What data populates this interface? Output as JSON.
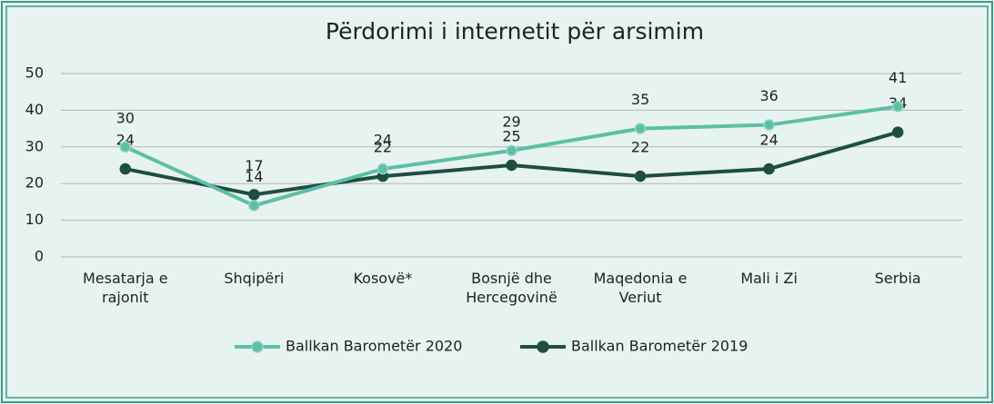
{
  "chart_data": {
    "type": "line",
    "title": "Përdorimi i internetit për arsimim",
    "categories": [
      "Mesatarja e rajonit",
      "Shqipëri",
      "Kosovë*",
      "Bosnjë dhe Hercegovinë",
      "Maqedonia e Veriut",
      "Mali i Zi",
      "Serbia"
    ],
    "series": [
      {
        "name": "Ballkan Barometër 2020",
        "color": "#5cbfa7",
        "values": [
          30,
          14,
          24,
          29,
          35,
          36,
          41
        ]
      },
      {
        "name": "Ballkan Barometër 2019",
        "color": "#1e4d43",
        "values": [
          24,
          17,
          22,
          25,
          22,
          24,
          34
        ]
      }
    ],
    "ylim": [
      0,
      50
    ],
    "yticks": [
      0,
      10,
      20,
      30,
      40,
      50
    ],
    "grid": true,
    "legend": "bottom"
  }
}
